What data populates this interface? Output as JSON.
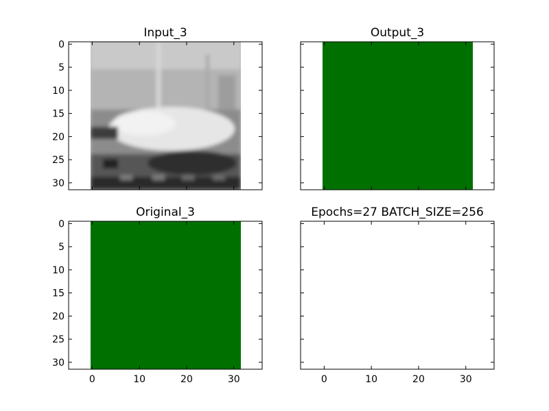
{
  "chart_data": [
    {
      "type": "heatmap",
      "title": "Input_3",
      "content": "grayscale-image",
      "xlim": [
        -5,
        36
      ],
      "ylim": [
        31.5,
        -0.5
      ],
      "image_extent_x": [
        -0.5,
        31.5
      ],
      "xticks": [
        0,
        10,
        20,
        30
      ],
      "yticks": [
        0,
        5,
        10,
        15,
        20,
        25,
        30
      ],
      "show_x_tick_labels": false,
      "show_y_tick_labels": true
    },
    {
      "type": "heatmap",
      "title": "Output_3",
      "content": "solid",
      "fill": "#007100",
      "xlim": [
        -5,
        36
      ],
      "ylim": [
        31.5,
        -0.5
      ],
      "image_extent_x": [
        -0.5,
        31.5
      ],
      "xticks": [
        0,
        10,
        20,
        30
      ],
      "yticks": [
        0,
        5,
        10,
        15,
        20,
        25,
        30
      ],
      "show_x_tick_labels": false,
      "show_y_tick_labels": false
    },
    {
      "type": "heatmap",
      "title": "Original_3",
      "content": "solid",
      "fill": "#007100",
      "xlim": [
        -5,
        36
      ],
      "ylim": [
        31.5,
        -0.5
      ],
      "image_extent_x": [
        -0.5,
        31.5
      ],
      "xticks": [
        0,
        10,
        20,
        30
      ],
      "yticks": [
        0,
        5,
        10,
        15,
        20,
        25,
        30
      ],
      "show_x_tick_labels": true,
      "show_y_tick_labels": true
    },
    {
      "type": "heatmap",
      "title": "Epochs=27 BATCH_SIZE=256",
      "content": "empty",
      "xlim": [
        -5,
        36
      ],
      "ylim": [
        31.5,
        -0.5
      ],
      "xticks": [
        0,
        10,
        20,
        30
      ],
      "yticks": [
        0,
        5,
        10,
        15,
        20,
        25,
        30
      ],
      "show_x_tick_labels": true,
      "show_y_tick_labels": false
    }
  ]
}
